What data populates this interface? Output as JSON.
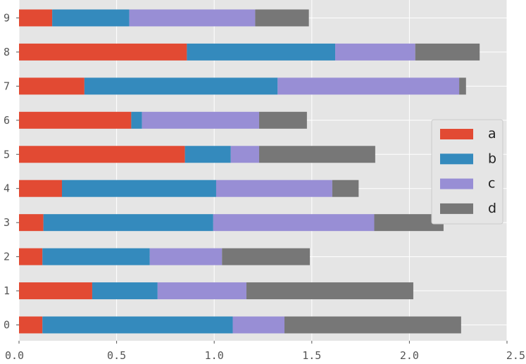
{
  "chart_data": {
    "type": "bar",
    "orientation": "horizontal",
    "stacked": true,
    "style": "ggplot",
    "categories": [
      "0",
      "1",
      "2",
      "3",
      "4",
      "5",
      "6",
      "7",
      "8",
      "9"
    ],
    "series": [
      {
        "name": "a",
        "color": "#E24A33",
        "values": [
          0.12,
          0.375,
          0.12,
          0.125,
          0.22,
          0.85,
          0.575,
          0.335,
          0.86,
          0.17
        ]
      },
      {
        "name": "b",
        "color": "#348ABD",
        "values": [
          0.975,
          0.335,
          0.55,
          0.87,
          0.79,
          0.235,
          0.055,
          0.99,
          0.76,
          0.395
        ]
      },
      {
        "name": "c",
        "color": "#988ED5",
        "values": [
          0.265,
          0.455,
          0.37,
          0.825,
          0.595,
          0.145,
          0.6,
          0.93,
          0.41,
          0.645
        ]
      },
      {
        "name": "d",
        "color": "#777777",
        "values": [
          0.905,
          0.855,
          0.45,
          0.355,
          0.135,
          0.595,
          0.245,
          0.035,
          0.33,
          0.275
        ]
      }
    ],
    "xlim": [
      0,
      2.5
    ],
    "xticks": [
      "0.0",
      "0.5",
      "1.0",
      "1.5",
      "2.0",
      "2.5"
    ],
    "title": "",
    "xlabel": "",
    "ylabel": "",
    "grid": true,
    "legend": "center-right"
  }
}
